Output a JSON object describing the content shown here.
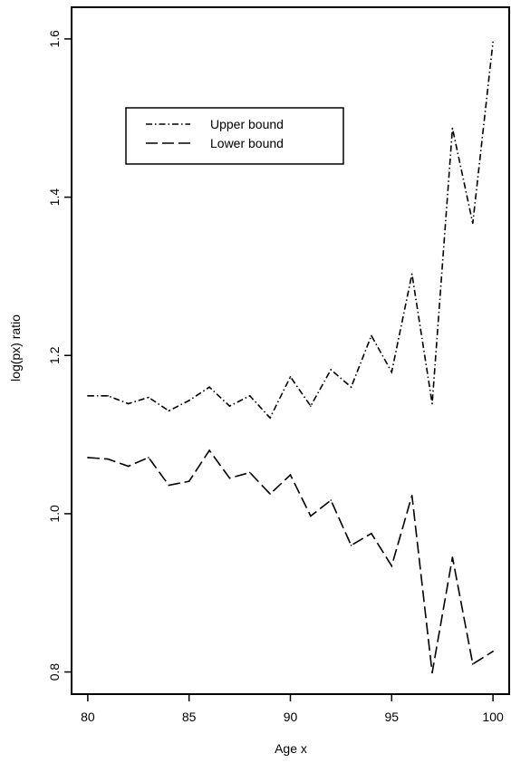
{
  "chart_data": {
    "type": "line",
    "title": "",
    "xlabel": "Age x",
    "ylabel": "log(px) ratio",
    "xlim": [
      79.2,
      100.8
    ],
    "ylim": [
      0.772,
      1.64
    ],
    "x_ticks": [
      80,
      85,
      90,
      95,
      100
    ],
    "y_ticks": [
      0.8,
      1.0,
      1.2,
      1.4,
      1.6
    ],
    "x_tick_labels": [
      "80",
      "85",
      "90",
      "95",
      "100"
    ],
    "y_tick_labels": [
      "0.8",
      "1.0",
      "1.2",
      "1.4",
      "1.6"
    ],
    "grid": false,
    "legend_position": "upper-left",
    "x": [
      80,
      81,
      82,
      83,
      84,
      85,
      86,
      87,
      88,
      89,
      90,
      91,
      92,
      93,
      94,
      95,
      96,
      97,
      98,
      99,
      100
    ],
    "series": [
      {
        "name": "Upper bound",
        "line_style": "dash-dot",
        "color": "#000000",
        "values": [
          1.149,
          1.149,
          1.139,
          1.147,
          1.13,
          1.143,
          1.16,
          1.136,
          1.149,
          1.121,
          1.173,
          1.136,
          1.182,
          1.16,
          1.225,
          1.179,
          1.303,
          1.139,
          1.487,
          1.367,
          1.596
        ]
      },
      {
        "name": "Lower bound",
        "line_style": "long-dash",
        "color": "#000000",
        "values": [
          1.071,
          1.069,
          1.06,
          1.071,
          1.036,
          1.041,
          1.08,
          1.045,
          1.052,
          1.025,
          1.049,
          0.997,
          1.017,
          0.96,
          0.975,
          0.934,
          1.023,
          0.799,
          0.945,
          0.81,
          0.826
        ]
      }
    ]
  }
}
